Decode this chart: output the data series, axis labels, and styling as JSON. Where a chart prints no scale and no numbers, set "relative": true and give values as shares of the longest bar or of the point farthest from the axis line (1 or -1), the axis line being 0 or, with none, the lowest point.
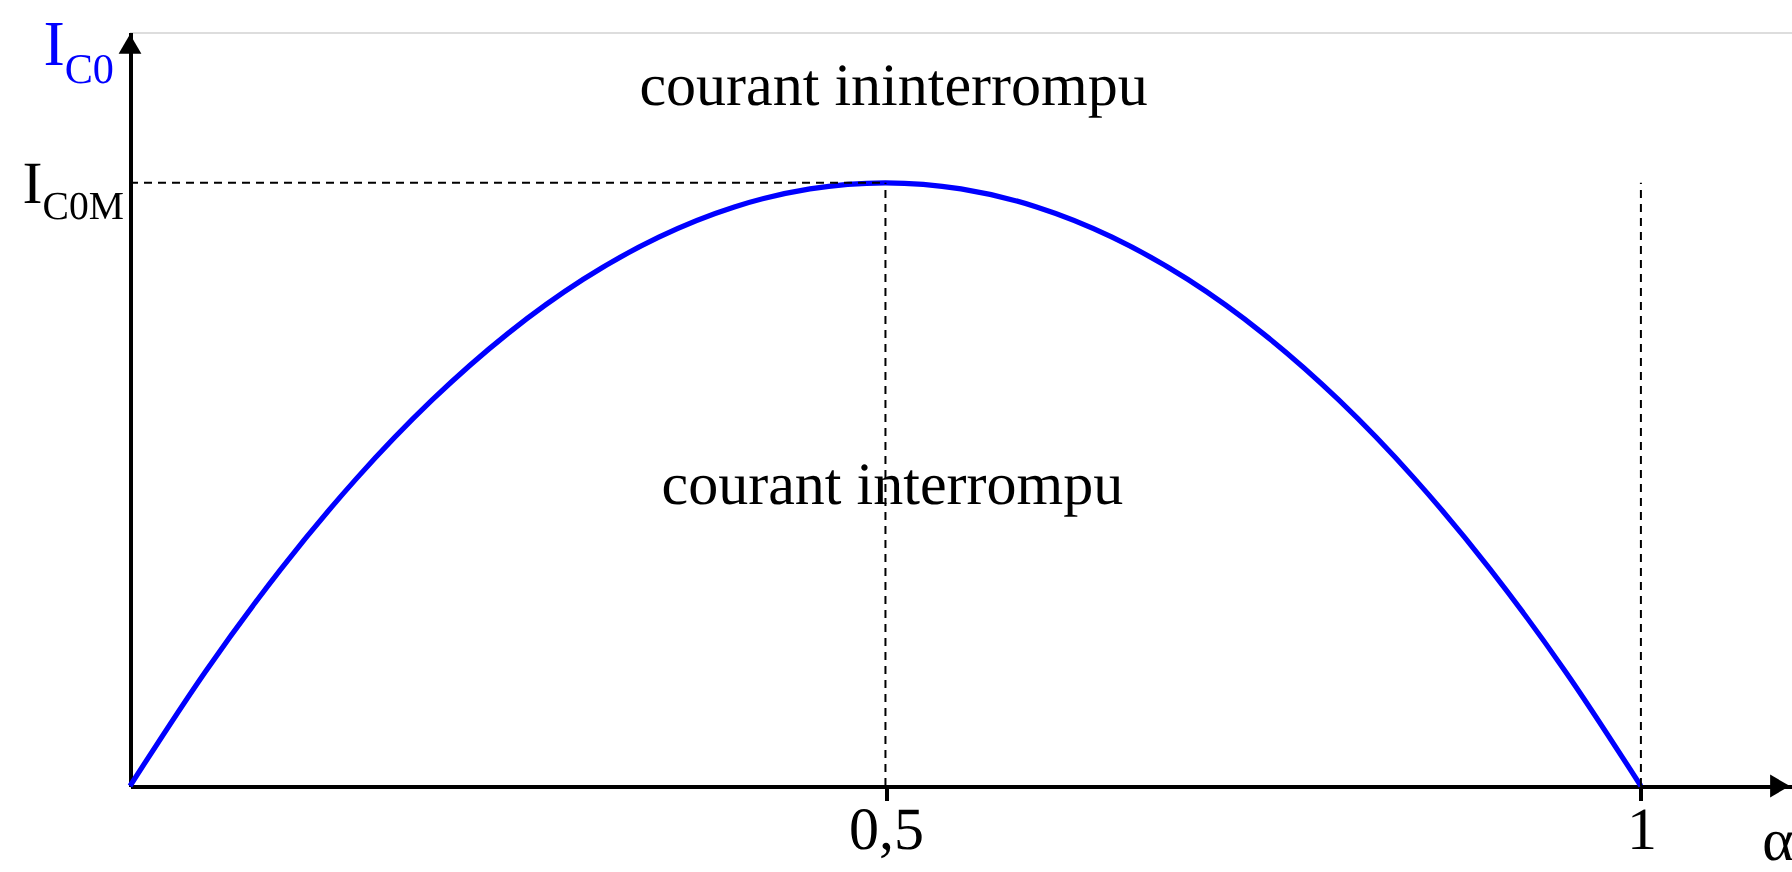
{
  "chart_data": {
    "type": "line",
    "xlabel": "α",
    "ylabel": "I$_{C0}$",
    "relative": true,
    "x": [
      0,
      0.05,
      0.1,
      0.15,
      0.2,
      0.25,
      0.3,
      0.35,
      0.4,
      0.45,
      0.5,
      0.55,
      0.6,
      0.65,
      0.7,
      0.75,
      0.8,
      0.85,
      0.9,
      0.95,
      1
    ],
    "series": [
      {
        "color": "#0000ff",
        "values": [
          0,
          0.19,
          0.36,
          0.51,
          0.64,
          0.75,
          0.84,
          0.91,
          0.96,
          0.99,
          1,
          0.99,
          0.96,
          0.91,
          0.84,
          0.75,
          0.64,
          0.51,
          0.36,
          0.19,
          0
        ]
      }
    ],
    "xlim": [
      0,
      1.1
    ],
    "xticks": [
      {
        "value": 0.5,
        "label": "0,5"
      },
      1
    ],
    "ref_lines": [
      {
        "axis": "y",
        "value": 1,
        "label": "I$_{C0M}$",
        "line_style": "dashed",
        "color": "#000000"
      },
      {
        "axis": "x",
        "value": 0.5,
        "line_style": "dashed",
        "color": "#000000"
      },
      {
        "axis": "x",
        "value": 1,
        "line_style": "dashed",
        "color": "#000000"
      }
    ],
    "annotations": [
      "courant ininterrompu",
      "courant interrompu"
    ],
    "marker": "none"
  }
}
